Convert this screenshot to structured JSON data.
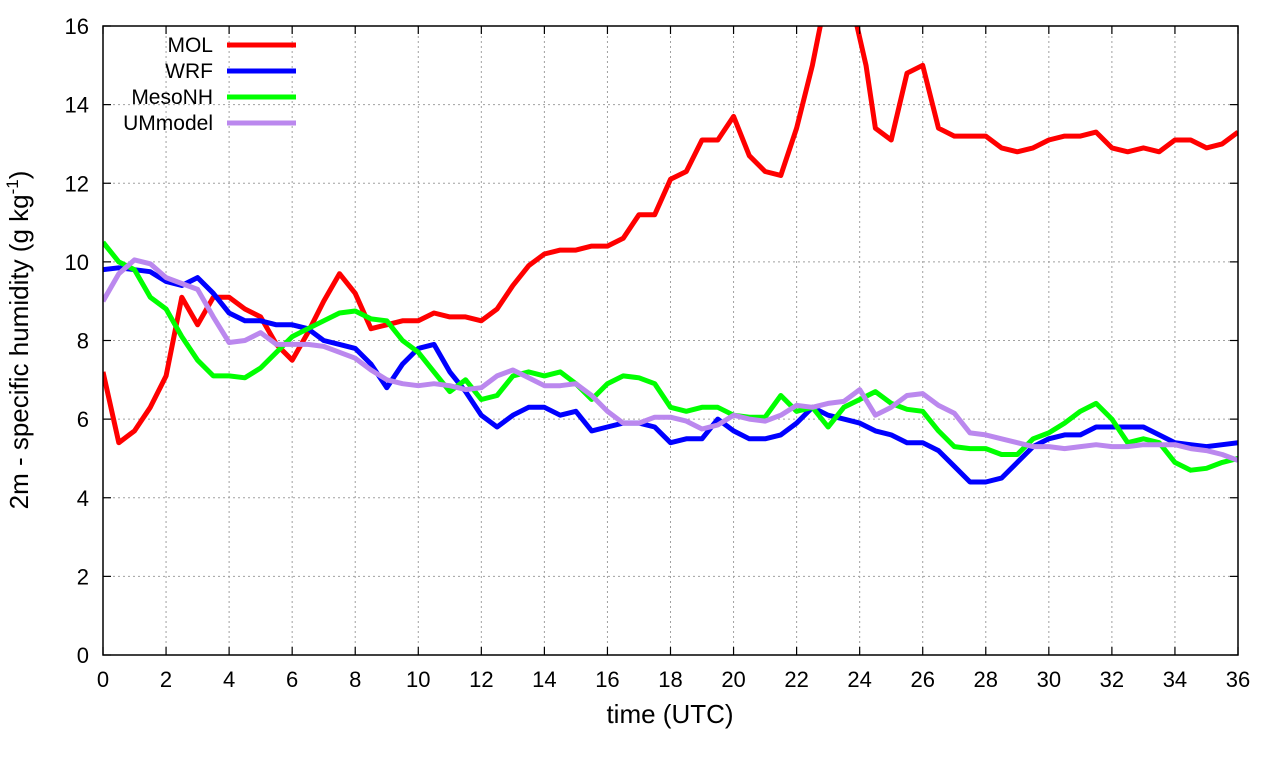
{
  "chart_data": {
    "type": "line",
    "xlabel": "time (UTC)",
    "ylabel": "2m - specific humidity (g kg",
    "ylabel_sup": "-1",
    "ylabel_close": ")",
    "xlim": [
      0,
      36
    ],
    "ylim": [
      0,
      16
    ],
    "xticks": [
      0,
      2,
      4,
      6,
      8,
      10,
      12,
      14,
      16,
      18,
      20,
      22,
      24,
      26,
      28,
      30,
      32,
      34,
      36
    ],
    "yticks": [
      0,
      2,
      4,
      6,
      8,
      10,
      12,
      14,
      16
    ],
    "grid": true,
    "legend_position": "top-left",
    "series": [
      {
        "name": "MOL",
        "color": "#ff0000",
        "points": [
          [
            0,
            7.2
          ],
          [
            0.5,
            5.4
          ],
          [
            1,
            5.7
          ],
          [
            1.5,
            6.3
          ],
          [
            2,
            7.1
          ],
          [
            2.5,
            9.1
          ],
          [
            3,
            8.4
          ],
          [
            3.5,
            9.1
          ],
          [
            4,
            9.1
          ],
          [
            4.5,
            8.8
          ],
          [
            5,
            8.6
          ],
          [
            5.5,
            7.9
          ],
          [
            6,
            7.5
          ],
          [
            6.5,
            8.2
          ],
          [
            7,
            9.0
          ],
          [
            7.5,
            9.7
          ],
          [
            8,
            9.2
          ],
          [
            8.5,
            8.3
          ],
          [
            9,
            8.4
          ],
          [
            9.5,
            8.5
          ],
          [
            10,
            8.5
          ],
          [
            10.5,
            8.7
          ],
          [
            11,
            8.6
          ],
          [
            11.5,
            8.6
          ],
          [
            12,
            8.5
          ],
          [
            12.5,
            8.8
          ],
          [
            13,
            9.4
          ],
          [
            13.5,
            9.9
          ],
          [
            14,
            10.2
          ],
          [
            14.5,
            10.3
          ],
          [
            15,
            10.3
          ],
          [
            15.5,
            10.4
          ],
          [
            16,
            10.4
          ],
          [
            16.5,
            10.6
          ],
          [
            17,
            11.2
          ],
          [
            17.5,
            11.2
          ],
          [
            18,
            12.1
          ],
          [
            18.5,
            12.3
          ],
          [
            19,
            13.1
          ],
          [
            19.5,
            13.1
          ],
          [
            20,
            13.7
          ],
          [
            20.5,
            12.7
          ],
          [
            21,
            12.3
          ],
          [
            21.5,
            12.2
          ],
          [
            22,
            13.4
          ],
          [
            22.5,
            15.0
          ],
          [
            22.85,
            16.4
          ],
          [
            23.8,
            16.4
          ],
          [
            24.2,
            15.0
          ],
          [
            24.5,
            13.4
          ],
          [
            25,
            13.1
          ],
          [
            25.5,
            14.8
          ],
          [
            26,
            15.0
          ],
          [
            26.5,
            13.4
          ],
          [
            27,
            13.2
          ],
          [
            27.5,
            13.2
          ],
          [
            28,
            13.2
          ],
          [
            28.5,
            12.9
          ],
          [
            29,
            12.8
          ],
          [
            29.5,
            12.9
          ],
          [
            30,
            13.1
          ],
          [
            30.5,
            13.2
          ],
          [
            31,
            13.2
          ],
          [
            31.5,
            13.3
          ],
          [
            32,
            12.9
          ],
          [
            32.5,
            12.8
          ],
          [
            33,
            12.9
          ],
          [
            33.5,
            12.8
          ],
          [
            34,
            13.1
          ],
          [
            34.5,
            13.1
          ],
          [
            35,
            12.9
          ],
          [
            35.5,
            13.0
          ],
          [
            36,
            13.3
          ]
        ]
      },
      {
        "name": "WRF",
        "color": "#0000ff",
        "points": [
          [
            0,
            9.8
          ],
          [
            0.5,
            9.85
          ],
          [
            1,
            9.8
          ],
          [
            1.5,
            9.75
          ],
          [
            2,
            9.5
          ],
          [
            2.5,
            9.4
          ],
          [
            3,
            9.6
          ],
          [
            3.5,
            9.2
          ],
          [
            4,
            8.7
          ],
          [
            4.5,
            8.5
          ],
          [
            5,
            8.5
          ],
          [
            5.5,
            8.4
          ],
          [
            6,
            8.4
          ],
          [
            6.5,
            8.3
          ],
          [
            7,
            8.0
          ],
          [
            7.5,
            7.9
          ],
          [
            8,
            7.8
          ],
          [
            8.5,
            7.4
          ],
          [
            9,
            6.8
          ],
          [
            9.5,
            7.4
          ],
          [
            10,
            7.8
          ],
          [
            10.5,
            7.9
          ],
          [
            11,
            7.2
          ],
          [
            11.5,
            6.7
          ],
          [
            12,
            6.1
          ],
          [
            12.5,
            5.8
          ],
          [
            13,
            6.1
          ],
          [
            13.5,
            6.3
          ],
          [
            14,
            6.3
          ],
          [
            14.5,
            6.1
          ],
          [
            15,
            6.2
          ],
          [
            15.5,
            5.7
          ],
          [
            16,
            5.8
          ],
          [
            16.5,
            5.9
          ],
          [
            17,
            5.9
          ],
          [
            17.5,
            5.8
          ],
          [
            18,
            5.4
          ],
          [
            18.5,
            5.5
          ],
          [
            19,
            5.5
          ],
          [
            19.5,
            6.0
          ],
          [
            20,
            5.7
          ],
          [
            20.5,
            5.5
          ],
          [
            21,
            5.5
          ],
          [
            21.5,
            5.6
          ],
          [
            22,
            5.9
          ],
          [
            22.5,
            6.3
          ],
          [
            23,
            6.1
          ],
          [
            23.5,
            6.0
          ],
          [
            24,
            5.9
          ],
          [
            24.5,
            5.7
          ],
          [
            25,
            5.6
          ],
          [
            25.5,
            5.4
          ],
          [
            26,
            5.4
          ],
          [
            26.5,
            5.2
          ],
          [
            27,
            4.8
          ],
          [
            27.5,
            4.4
          ],
          [
            28,
            4.4
          ],
          [
            28.5,
            4.5
          ],
          [
            29,
            4.9
          ],
          [
            29.5,
            5.3
          ],
          [
            30,
            5.5
          ],
          [
            30.5,
            5.6
          ],
          [
            31,
            5.6
          ],
          [
            31.5,
            5.8
          ],
          [
            32,
            5.8
          ],
          [
            32.5,
            5.8
          ],
          [
            33,
            5.8
          ],
          [
            33.5,
            5.6
          ],
          [
            34,
            5.4
          ],
          [
            34.5,
            5.35
          ],
          [
            35,
            5.3
          ],
          [
            35.5,
            5.35
          ],
          [
            36,
            5.4
          ]
        ]
      },
      {
        "name": "MesoNH",
        "color": "#00ff00",
        "points": [
          [
            0,
            10.5
          ],
          [
            0.5,
            10.0
          ],
          [
            1,
            9.8
          ],
          [
            1.5,
            9.1
          ],
          [
            2,
            8.8
          ],
          [
            2.5,
            8.1
          ],
          [
            3,
            7.5
          ],
          [
            3.5,
            7.1
          ],
          [
            4,
            7.1
          ],
          [
            4.5,
            7.05
          ],
          [
            5,
            7.3
          ],
          [
            5.5,
            7.7
          ],
          [
            6,
            8.1
          ],
          [
            6.5,
            8.3
          ],
          [
            7,
            8.5
          ],
          [
            7.5,
            8.7
          ],
          [
            8,
            8.75
          ],
          [
            8.5,
            8.55
          ],
          [
            9,
            8.5
          ],
          [
            9.5,
            8.0
          ],
          [
            10,
            7.7
          ],
          [
            10.5,
            7.2
          ],
          [
            11,
            6.7
          ],
          [
            11.5,
            7.0
          ],
          [
            12,
            6.5
          ],
          [
            12.5,
            6.6
          ],
          [
            13,
            7.1
          ],
          [
            13.5,
            7.2
          ],
          [
            14,
            7.1
          ],
          [
            14.5,
            7.2
          ],
          [
            15,
            6.9
          ],
          [
            15.5,
            6.5
          ],
          [
            16,
            6.9
          ],
          [
            16.5,
            7.1
          ],
          [
            17,
            7.05
          ],
          [
            17.5,
            6.9
          ],
          [
            18,
            6.3
          ],
          [
            18.5,
            6.2
          ],
          [
            19,
            6.3
          ],
          [
            19.5,
            6.3
          ],
          [
            20,
            6.1
          ],
          [
            20.5,
            6.05
          ],
          [
            21,
            6.05
          ],
          [
            21.5,
            6.6
          ],
          [
            22,
            6.2
          ],
          [
            22.5,
            6.3
          ],
          [
            23,
            5.8
          ],
          [
            23.5,
            6.3
          ],
          [
            24,
            6.5
          ],
          [
            24.5,
            6.7
          ],
          [
            25,
            6.4
          ],
          [
            25.5,
            6.25
          ],
          [
            26,
            6.2
          ],
          [
            26.5,
            5.7
          ],
          [
            27,
            5.3
          ],
          [
            27.5,
            5.25
          ],
          [
            28,
            5.25
          ],
          [
            28.5,
            5.1
          ],
          [
            29,
            5.1
          ],
          [
            29.5,
            5.5
          ],
          [
            30,
            5.65
          ],
          [
            30.5,
            5.9
          ],
          [
            31,
            6.2
          ],
          [
            31.5,
            6.4
          ],
          [
            32,
            6.0
          ],
          [
            32.5,
            5.4
          ],
          [
            33,
            5.5
          ],
          [
            33.5,
            5.4
          ],
          [
            34,
            4.9
          ],
          [
            34.5,
            4.7
          ],
          [
            35,
            4.75
          ],
          [
            35.5,
            4.9
          ],
          [
            36,
            5.0
          ]
        ]
      },
      {
        "name": "UMmodel",
        "color": "#bb88ee",
        "points": [
          [
            0,
            9.0
          ],
          [
            0.5,
            9.7
          ],
          [
            1,
            10.05
          ],
          [
            1.5,
            9.95
          ],
          [
            2,
            9.6
          ],
          [
            2.5,
            9.45
          ],
          [
            3,
            9.3
          ],
          [
            3.5,
            8.6
          ],
          [
            4,
            7.95
          ],
          [
            4.5,
            8.0
          ],
          [
            5,
            8.2
          ],
          [
            5.5,
            7.9
          ],
          [
            6,
            7.9
          ],
          [
            6.5,
            7.9
          ],
          [
            7,
            7.85
          ],
          [
            7.5,
            7.7
          ],
          [
            8,
            7.55
          ],
          [
            8.5,
            7.25
          ],
          [
            9,
            7.0
          ],
          [
            9.5,
            6.9
          ],
          [
            10,
            6.85
          ],
          [
            10.5,
            6.9
          ],
          [
            11,
            6.85
          ],
          [
            11.5,
            6.75
          ],
          [
            12,
            6.8
          ],
          [
            12.5,
            7.1
          ],
          [
            13,
            7.25
          ],
          [
            13.5,
            7.05
          ],
          [
            14,
            6.85
          ],
          [
            14.5,
            6.85
          ],
          [
            15,
            6.9
          ],
          [
            15.5,
            6.6
          ],
          [
            16,
            6.2
          ],
          [
            16.5,
            5.9
          ],
          [
            17,
            5.9
          ],
          [
            17.5,
            6.05
          ],
          [
            18,
            6.05
          ],
          [
            18.5,
            5.95
          ],
          [
            19,
            5.75
          ],
          [
            19.5,
            5.85
          ],
          [
            20,
            6.1
          ],
          [
            20.5,
            6.0
          ],
          [
            21,
            5.95
          ],
          [
            21.5,
            6.1
          ],
          [
            22,
            6.35
          ],
          [
            22.5,
            6.3
          ],
          [
            23,
            6.4
          ],
          [
            23.5,
            6.45
          ],
          [
            24,
            6.75
          ],
          [
            24.5,
            6.1
          ],
          [
            25,
            6.3
          ],
          [
            25.5,
            6.6
          ],
          [
            26,
            6.65
          ],
          [
            26.5,
            6.35
          ],
          [
            27,
            6.15
          ],
          [
            27.5,
            5.65
          ],
          [
            28,
            5.6
          ],
          [
            28.5,
            5.5
          ],
          [
            29,
            5.4
          ],
          [
            29.5,
            5.3
          ],
          [
            30,
            5.3
          ],
          [
            30.5,
            5.25
          ],
          [
            31,
            5.3
          ],
          [
            31.5,
            5.35
          ],
          [
            32,
            5.3
          ],
          [
            32.5,
            5.3
          ],
          [
            33,
            5.35
          ],
          [
            33.5,
            5.35
          ],
          [
            34,
            5.35
          ],
          [
            34.5,
            5.25
          ],
          [
            35,
            5.2
          ],
          [
            35.5,
            5.1
          ],
          [
            36,
            4.95
          ]
        ]
      }
    ]
  }
}
